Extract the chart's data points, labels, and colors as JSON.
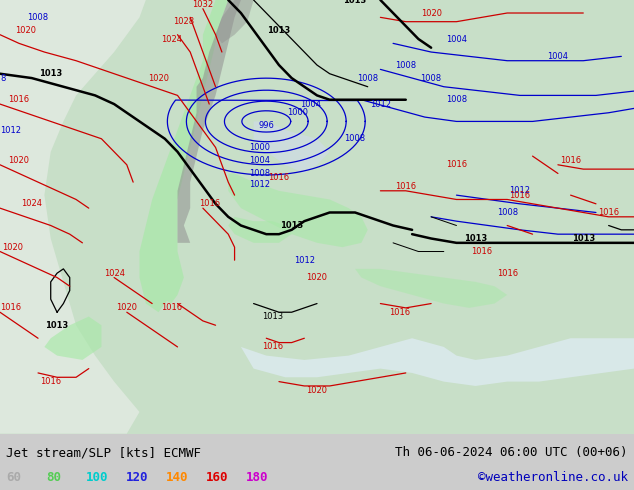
{
  "title_left": "Jet stream/SLP [kts] ECMWF",
  "title_right": "Th 06-06-2024 06:00 UTC (00+06)",
  "copyright": "©weatheronline.co.uk",
  "legend_values": [
    "60",
    "80",
    "100",
    "120",
    "140",
    "160",
    "180"
  ],
  "legend_colors": [
    "#aaaaaa",
    "#55cc55",
    "#00cccc",
    "#2222dd",
    "#ff8800",
    "#dd0000",
    "#cc00cc"
  ],
  "footer_bg": "#cccccc",
  "footer_text_color": "#000000",
  "copyright_color": "#0000bb",
  "figsize": [
    6.34,
    4.9
  ],
  "dpi": 100,
  "land_color": "#c8dfc8",
  "sea_color": "#e8f0e8",
  "ocean_color": "#dce8dc",
  "jet_green_light": "#a8e8a8",
  "jet_green_mid": "#78d878",
  "jet_gray": "#909090",
  "black_contour": "#000000",
  "blue_contour": "#0000cc",
  "red_contour": "#cc0000",
  "footer_fontsize": 9,
  "legend_fontsize": 9,
  "contour_fontsize": 6,
  "contour_lw": 0.9,
  "thick_lw": 1.8
}
